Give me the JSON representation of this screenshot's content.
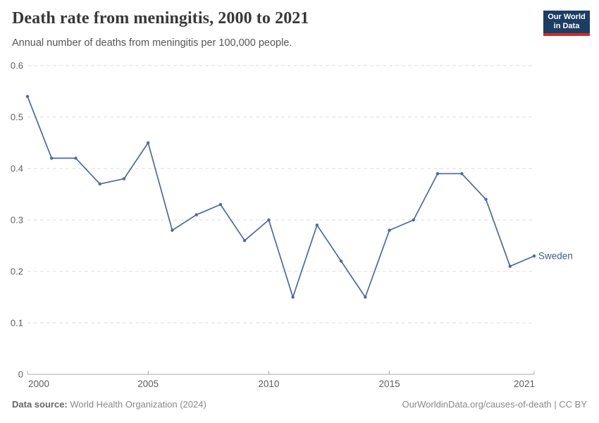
{
  "header": {
    "title": "Death rate from meningitis, 2000 to 2021",
    "subtitle": "Annual number of deaths from meningitis per 100,000 people.",
    "logo": {
      "line1": "Our World",
      "line2": "in Data",
      "bg_color": "#1d3d63",
      "stripe_color": "#d42b21"
    }
  },
  "chart_data": {
    "type": "line",
    "title": "Death rate from meningitis, 2000 to 2021",
    "subtitle": "Annual number of deaths from meningitis per 100,000 people.",
    "x": [
      2000,
      2001,
      2002,
      2003,
      2004,
      2005,
      2006,
      2007,
      2008,
      2009,
      2010,
      2011,
      2012,
      2013,
      2014,
      2015,
      2016,
      2017,
      2018,
      2019,
      2020,
      2021
    ],
    "series": [
      {
        "name": "Sweden",
        "color": "#4c6a9c",
        "label_color": "#3d5c8f",
        "values": [
          0.54,
          0.42,
          0.42,
          0.37,
          0.38,
          0.45,
          0.28,
          0.31,
          0.33,
          0.26,
          0.3,
          0.15,
          0.29,
          0.22,
          0.15,
          0.28,
          0.3,
          0.39,
          0.39,
          0.34,
          0.21,
          0.23
        ]
      }
    ],
    "xlabel": "",
    "ylabel": "",
    "xlim": [
      2000,
      2021
    ],
    "ylim": [
      0,
      0.6
    ],
    "yticks": [
      {
        "value": 0.6,
        "label": "0.6"
      },
      {
        "value": 0.5,
        "label": "0.5"
      },
      {
        "value": 0.4,
        "label": "0.4"
      },
      {
        "value": 0.3,
        "label": "0.3"
      },
      {
        "value": 0.2,
        "label": "0.2"
      },
      {
        "value": 0.1,
        "label": "0.1"
      },
      {
        "value": 0,
        "label": "0"
      }
    ],
    "xticks": [
      {
        "value": 2000,
        "label": "2000",
        "align": "start"
      },
      {
        "value": 2005,
        "label": "2005",
        "align": "middle"
      },
      {
        "value": 2010,
        "label": "2010",
        "align": "middle"
      },
      {
        "value": 2015,
        "label": "2015",
        "align": "middle"
      },
      {
        "value": 2021,
        "label": "2021",
        "align": "end"
      }
    ],
    "grid": "horizontal-dashed",
    "legend_position": "end-of-line-label",
    "colors": {
      "gridline": "#dedede",
      "axis": "#a8a8a8",
      "tick_label": "#5e5e5e"
    }
  },
  "footer": {
    "source_label": "Data source:",
    "source_value": " World Health Organization (2024)",
    "credit": "OurWorldinData.org/causes-of-death | CC BY"
  }
}
